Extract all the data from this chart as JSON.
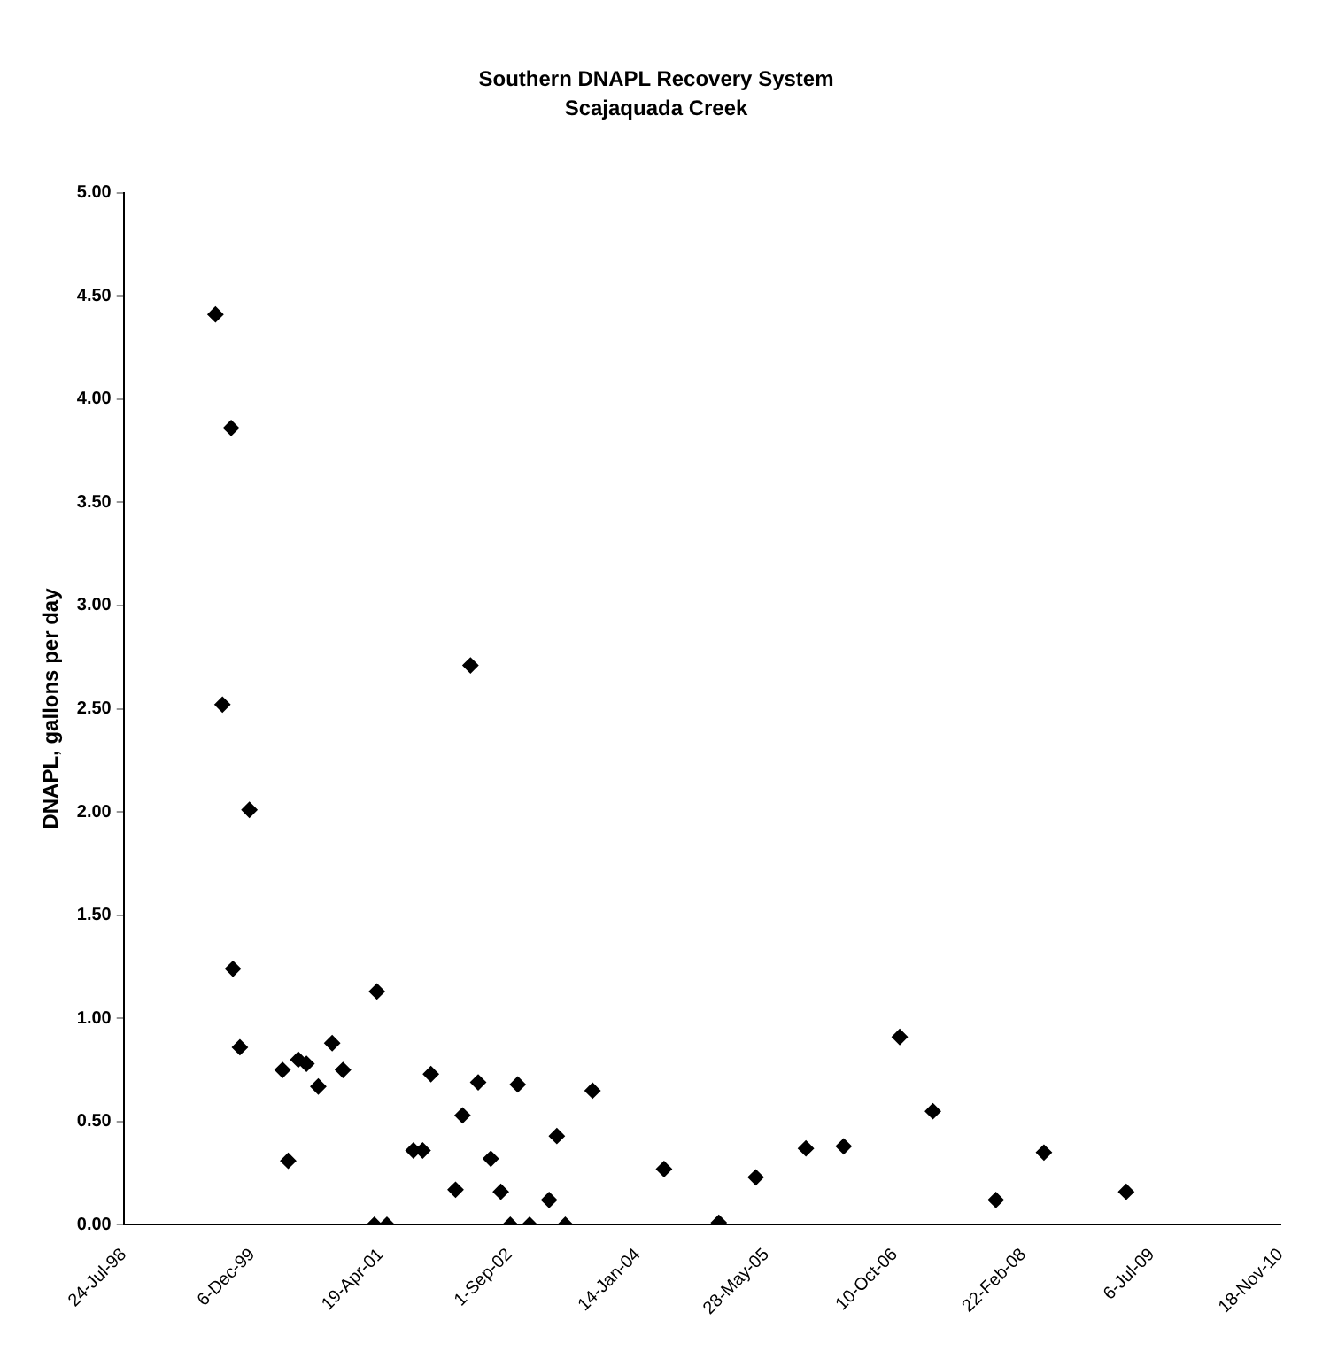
{
  "chart_data": {
    "type": "scatter",
    "title": "Southern DNAPL Recovery System",
    "subtitle": "Scajaquada Creek",
    "ylabel": "DNAPL, gallons per day",
    "x": [
      "1999-07-16",
      "1999-09-15",
      "2002-04-03",
      "1999-08-12",
      "1999-11-25",
      "1999-09-22",
      "1999-10-19",
      "2000-04-02",
      "2000-04-24",
      "2000-06-02",
      "2000-07-04",
      "2000-08-19",
      "2000-10-12",
      "2000-11-23",
      "2001-04-04",
      "2001-03-25",
      "2001-05-13",
      "2001-08-24",
      "2001-09-29",
      "2001-10-31",
      "2002-02-04",
      "2002-03-03",
      "2002-05-03",
      "2002-06-21",
      "2002-07-30",
      "2002-09-05",
      "2002-10-04",
      "2002-11-19",
      "2003-02-03",
      "2003-03-05",
      "2003-04-07",
      "2003-07-22",
      "2004-04-25",
      "2004-11-24",
      "2005-04-17",
      "2005-10-29",
      "2006-03-25",
      "2006-10-29",
      "2007-03-07",
      "2007-11-07",
      "2008-05-12",
      "2009-03-28"
    ],
    "series": [
      {
        "color": "#000000",
        "values": [
          4.41,
          3.86,
          2.71,
          2.52,
          2.01,
          1.24,
          0.86,
          0.75,
          0.31,
          0.8,
          0.78,
          0.67,
          0.88,
          0.75,
          1.13,
          0,
          0,
          0.36,
          0.36,
          0.73,
          0.17,
          0.53,
          0.69,
          0.32,
          0.16,
          0,
          0.68,
          0,
          0.12,
          0.43,
          0,
          0.65,
          0.27,
          0.01,
          0.23,
          0.37,
          0.38,
          0.91,
          0.55,
          0.12,
          0.35,
          0.16
        ]
      }
    ],
    "xlim": [
      "1998-07-24",
      "2010-11-18"
    ],
    "xticks": [
      {
        "value": "1998-07-24",
        "label": "24-Jul-98"
      },
      {
        "value": "1999-12-06",
        "label": "6-Dec-99"
      },
      {
        "value": "2001-04-19",
        "label": "19-Apr-01"
      },
      {
        "value": "2002-09-01",
        "label": "1-Sep-02"
      },
      {
        "value": "2004-01-14",
        "label": "14-Jan-04"
      },
      {
        "value": "2005-05-28",
        "label": "28-May-05"
      },
      {
        "value": "2006-10-10",
        "label": "10-Oct-06"
      },
      {
        "value": "2008-02-22",
        "label": "22-Feb-08"
      },
      {
        "value": "2009-07-06",
        "label": "6-Jul-09"
      },
      {
        "value": "2010-11-18",
        "label": "18-Nov-10"
      }
    ],
    "ylim": [
      0,
      5
    ],
    "yticks": [
      {
        "value": 0,
        "label": "0.00"
      },
      {
        "value": 0.5,
        "label": "0.50"
      },
      {
        "value": 1,
        "label": "1.00"
      },
      {
        "value": 1.5,
        "label": "1.50"
      },
      {
        "value": 2,
        "label": "2.00"
      },
      {
        "value": 2.5,
        "label": "2.50"
      },
      {
        "value": 3,
        "label": "3.00"
      },
      {
        "value": 3.5,
        "label": "3.50"
      },
      {
        "value": 4,
        "label": "4.00"
      },
      {
        "value": 4.5,
        "label": "4.50"
      },
      {
        "value": 5,
        "label": "5.00"
      }
    ],
    "grid": false,
    "legend": false,
    "marker": "diamond"
  }
}
